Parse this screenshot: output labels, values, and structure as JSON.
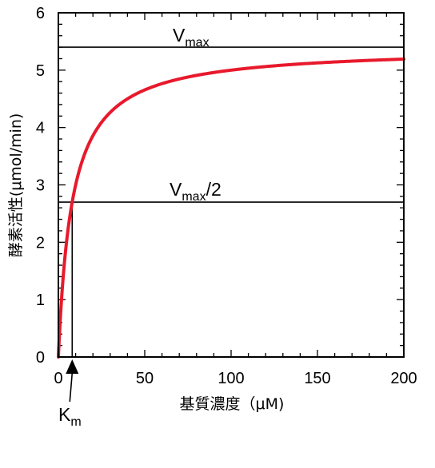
{
  "chart_data": {
    "type": "line",
    "xlabel": "基質濃度（μM)",
    "ylabel": "酵素活性(μmol/min)",
    "xlim": [
      0,
      200
    ],
    "ylim": [
      0,
      6
    ],
    "x_ticks": [
      "0",
      "50",
      "100",
      "150",
      "200"
    ],
    "y_ticks": [
      "0",
      "1",
      "2",
      "3",
      "4",
      "5",
      "6"
    ],
    "grid": false,
    "curve": {
      "model": "michaelis-menten",
      "vmax": 5.4,
      "km": 8,
      "color": "#e8192c"
    },
    "reference_lines": [
      {
        "y": 5.4,
        "label_main": "V",
        "label_sub": "max",
        "label_tail": ""
      },
      {
        "y": 2.7,
        "label_main": "V",
        "label_sub": "max",
        "label_tail": "/2"
      }
    ],
    "km_marker": {
      "x": 8,
      "label_main": "K",
      "label_sub": "m"
    }
  }
}
